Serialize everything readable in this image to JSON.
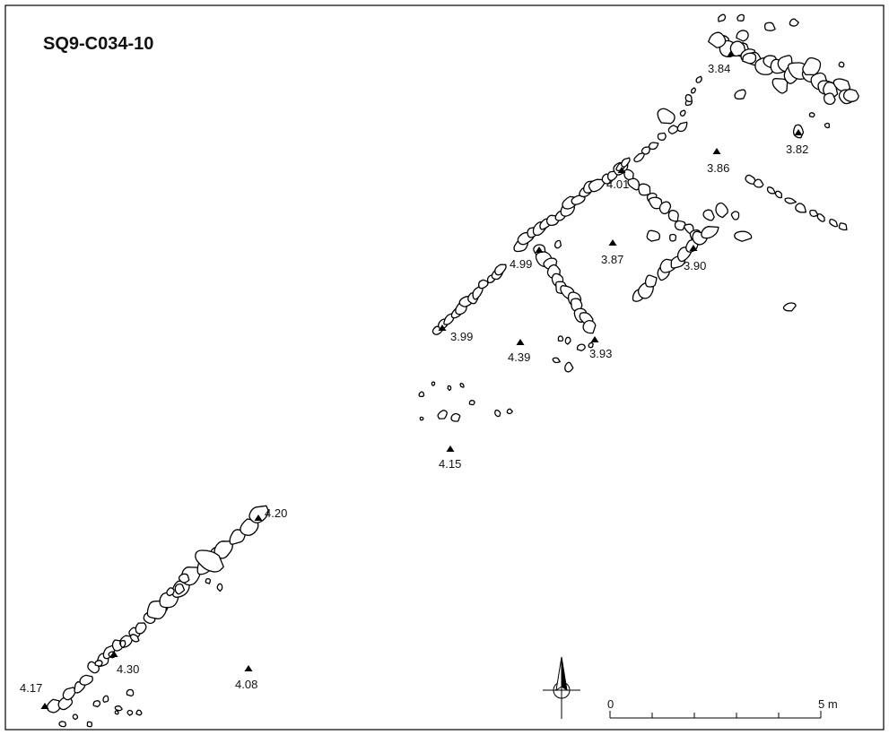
{
  "title": "SQ9-C034-10",
  "elevations": [
    {
      "id": "e1",
      "value": "3.84"
    },
    {
      "id": "e2",
      "value": "3.82"
    },
    {
      "id": "e3",
      "value": "3.86"
    },
    {
      "id": "e4",
      "value": "4.01"
    },
    {
      "id": "e5",
      "value": "3.87"
    },
    {
      "id": "e6",
      "value": "4.99"
    },
    {
      "id": "e7",
      "value": "3.90"
    },
    {
      "id": "e8",
      "value": "3.99"
    },
    {
      "id": "e9",
      "value": "4.39"
    },
    {
      "id": "e10",
      "value": "3.93"
    },
    {
      "id": "e11",
      "value": "4.15"
    },
    {
      "id": "e12",
      "value": "4.20"
    },
    {
      "id": "e13",
      "value": "4.30"
    },
    {
      "id": "e14",
      "value": "4.08"
    },
    {
      "id": "e15",
      "value": "4.17"
    }
  ],
  "scale_bar": {
    "start_label": "0",
    "end_label": "5 m",
    "divisions": 5
  },
  "north_arrow": {
    "icon": "north-arrow-icon"
  }
}
